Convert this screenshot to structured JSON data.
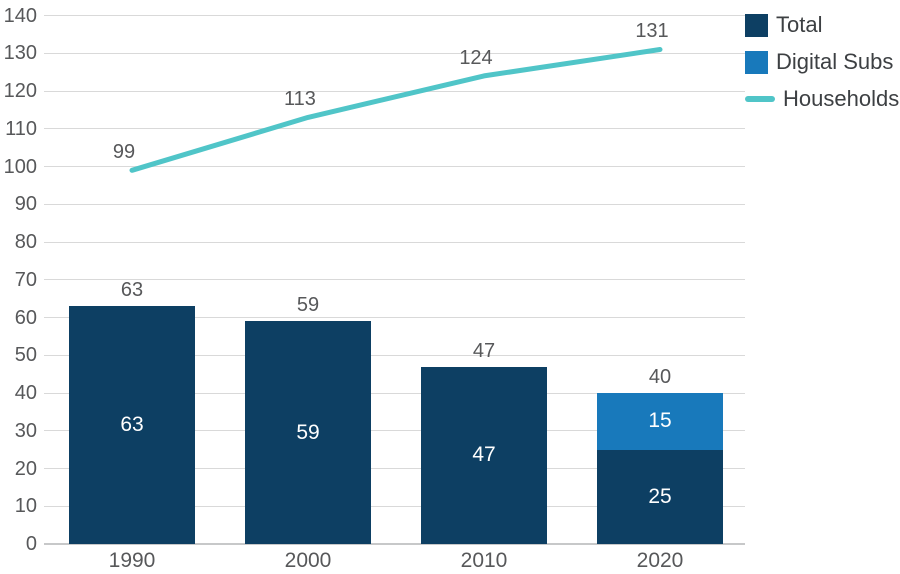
{
  "chart_data": {
    "type": "bar",
    "subtype": "stacked-bar-with-line-combo",
    "title": "",
    "categories": [
      "1990",
      "2000",
      "2010",
      "2020"
    ],
    "series": [
      {
        "name": "Total",
        "type": "bar",
        "color": "#0d3f63",
        "label_color": "#ffffff",
        "values": [
          63,
          59,
          47,
          25
        ]
      },
      {
        "name": "Digital Subs",
        "type": "bar",
        "color": "#1879bb",
        "label_color": "#ffffff",
        "values": [
          0,
          0,
          0,
          15
        ]
      },
      {
        "name": "Households",
        "type": "line",
        "color": "#50c5c8",
        "values": [
          99,
          113,
          124,
          131
        ]
      }
    ],
    "stack_total_labels": [
      "63",
      "59",
      "47",
      "40"
    ],
    "segment_labels": {
      "Total": [
        "63",
        "59",
        "47",
        "25"
      ],
      "Digital Subs": [
        "",
        "",
        "",
        "15"
      ]
    },
    "line_point_labels": [
      "99",
      "113",
      "124",
      "131"
    ],
    "xlabel": "",
    "ylabel": "",
    "ylim": [
      0,
      140
    ],
    "y_tick_step": 10,
    "y_tick_labels": [
      "0",
      "10",
      "20",
      "30",
      "40",
      "50",
      "60",
      "70",
      "80",
      "90",
      "100",
      "110",
      "120",
      "130",
      "140"
    ],
    "grid": "horizontal",
    "legend_position": "top-right"
  },
  "legend": {
    "items": [
      {
        "label": "Total",
        "marker": "square",
        "color": "#0d3f63"
      },
      {
        "label": "Digital Subs",
        "marker": "square",
        "color": "#1879bb"
      },
      {
        "label": "Households",
        "marker": "line",
        "color": "#50c5c8"
      }
    ]
  },
  "colors": {
    "background": "#ffffff",
    "gridline": "#d9d9d9",
    "axis_line": "#c7c8c9",
    "tick_text": "#57585a",
    "legend_text": "#3d4043"
  }
}
